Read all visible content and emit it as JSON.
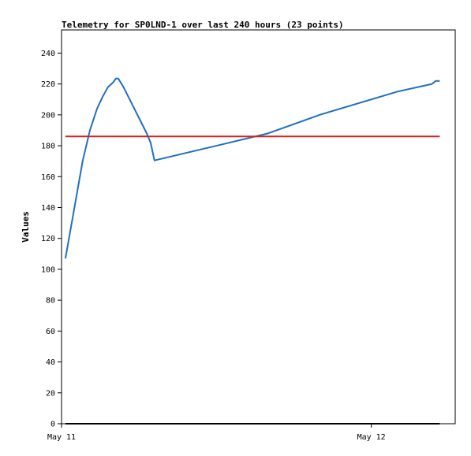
{
  "chart_data": {
    "type": "line",
    "title": "Telemetry for SP0LND-1 over last 240 hours (23 points)",
    "ylabel": "Values",
    "xlabel": "",
    "ylim": [
      0,
      255
    ],
    "xlim": [
      "2024-05-11T00:00",
      "2024-05-12T06:30"
    ],
    "yticks": [
      0,
      20,
      40,
      60,
      80,
      100,
      120,
      140,
      160,
      180,
      200,
      220,
      240
    ],
    "xticks": [
      {
        "t": "2024-05-11T00:00",
        "label": "May 11"
      },
      {
        "t": "2024-05-12T00:00",
        "label": "May 12"
      }
    ],
    "grid": false,
    "series": [
      {
        "color": "#1f6fc0",
        "points": [
          [
            "2024-05-11T00:18",
            107
          ],
          [
            "2024-05-11T01:00",
            140
          ],
          [
            "2024-05-11T01:38",
            170
          ],
          [
            "2024-05-11T02:12",
            190
          ],
          [
            "2024-05-11T02:45",
            204
          ],
          [
            "2024-05-11T03:12",
            212
          ],
          [
            "2024-05-11T03:36",
            218
          ],
          [
            "2024-05-11T04:00",
            221
          ],
          [
            "2024-05-11T04:12",
            223.5
          ],
          [
            "2024-05-11T04:24",
            223.5
          ],
          [
            "2024-05-11T04:48",
            218
          ],
          [
            "2024-05-11T05:24",
            208
          ],
          [
            "2024-05-11T06:00",
            198
          ],
          [
            "2024-05-11T06:36",
            188
          ],
          [
            "2024-05-11T06:54",
            182
          ],
          [
            "2024-05-11T07:12",
            170.5
          ],
          [
            "2024-05-11T12:00",
            180
          ],
          [
            "2024-05-11T16:00",
            188
          ],
          [
            "2024-05-11T20:00",
            200
          ],
          [
            "2024-05-12T02:00",
            215
          ],
          [
            "2024-05-12T04:42",
            220
          ],
          [
            "2024-05-12T05:00",
            222
          ],
          [
            "2024-05-12T05:18",
            222
          ]
        ]
      },
      {
        "color": "#d62020",
        "points": [
          [
            "2024-05-11T00:18",
            186
          ],
          [
            "2024-05-12T05:18",
            186
          ]
        ]
      },
      {
        "color": "#000000",
        "points": [
          [
            "2024-05-11T00:18",
            0
          ],
          [
            "2024-05-12T05:18",
            0
          ]
        ]
      }
    ]
  }
}
